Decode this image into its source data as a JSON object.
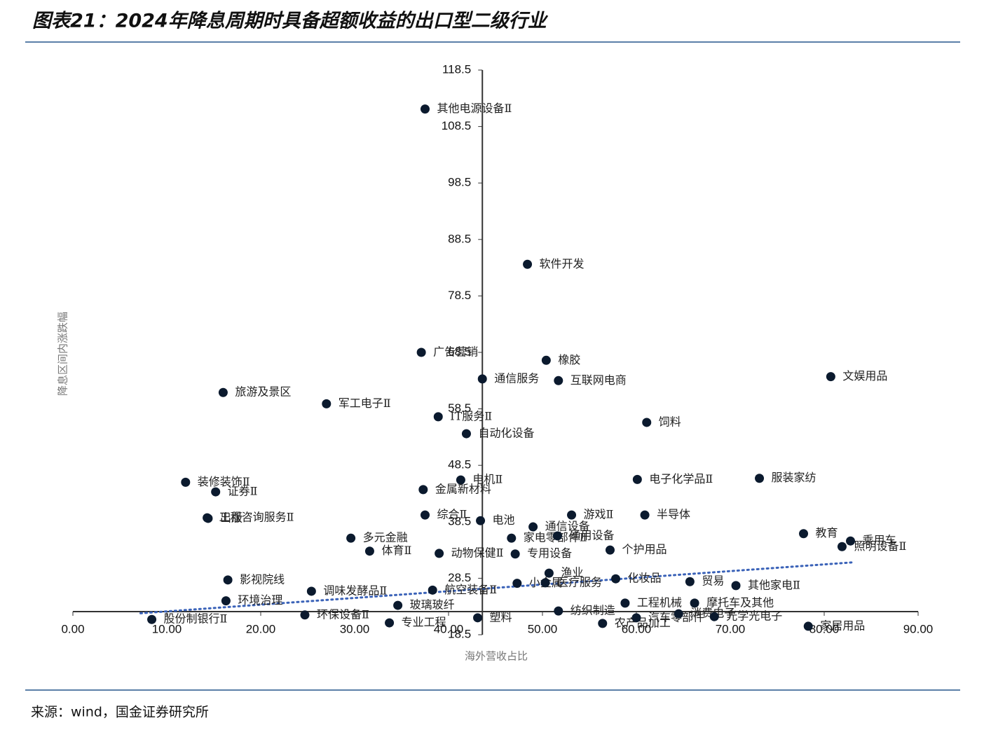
{
  "chart_data": {
    "type": "scatter",
    "title": "图表21：2024年降息周期时具备超额收益的出口型二级行业",
    "xlabel": "海外营收占比",
    "ylabel": "降息区间内涨跌幅",
    "source": "来源：wind，国金证券研究所",
    "xlim": [
      0,
      90
    ],
    "ylim": [
      18.5,
      118.5
    ],
    "xticks": [
      {
        "value": 0,
        "label": "0.00"
      },
      {
        "value": 10,
        "label": "10.00"
      },
      {
        "value": 20,
        "label": "20.00"
      },
      {
        "value": 30,
        "label": "30.00"
      },
      {
        "value": 40,
        "label": "40.00"
      },
      {
        "value": 50,
        "label": "50.00"
      },
      {
        "value": 60,
        "label": "60.00"
      },
      {
        "value": 70,
        "label": "70.00"
      },
      {
        "value": 80,
        "label": "80.00"
      },
      {
        "value": 90,
        "label": "90.00"
      }
    ],
    "yticks": [
      18.5,
      28.5,
      38.5,
      48.5,
      58.5,
      68.5,
      78.5,
      88.5,
      98.5,
      108.5,
      118.5
    ],
    "x_axis_crosses_at": 22.6,
    "y_axis_crosses_at": 43.6,
    "color": "#0b1a2e",
    "labels": [
      "其他电源设备Ⅱ",
      "软件开发",
      "广告营销",
      "橡胶",
      "文娱用品",
      "通信服务",
      "互联网电商",
      "旅游及景区",
      "军工电子Ⅱ",
      "IT服务Ⅱ",
      "饲料",
      "自动化设备",
      "电机Ⅱ",
      "装修装饰Ⅱ",
      "电子化学品Ⅱ",
      "服装家纺",
      "证券Ⅱ",
      "金属新材料",
      "游戏Ⅱ",
      "半导体",
      "工程咨询服务Ⅱ",
      "出版",
      "综合Ⅱ",
      "电池",
      "多元金融",
      "家电零部件Ⅱ",
      "教育",
      "乘用车",
      "照明设备Ⅱ",
      "个护用品",
      "体育Ⅱ",
      "专用设备",
      "动物保健Ⅱ",
      "影视院线",
      "调味发酵品Ⅱ",
      "航空装备Ⅱ",
      "环境治理",
      "玻璃玻纤",
      "股份制银行Ⅱ",
      "环保设备Ⅱ",
      "专业工程",
      "塑料",
      "渔业",
      "化妆品",
      "贸易",
      "其他家电Ⅱ",
      "摩托车及其他",
      "家居用品",
      "小金属",
      "通用设备",
      "医疗服务",
      "纺织制造",
      "农产品加工",
      "工程机械",
      "汽车零部件",
      "消费电子",
      "光学光电子",
      "通信设备"
    ],
    "x": [
      37.5,
      48.4,
      37.1,
      50.4,
      80.7,
      43.6,
      51.7,
      16.0,
      27.0,
      38.9,
      61.1,
      41.9,
      41.3,
      12.0,
      60.1,
      73.1,
      15.2,
      37.3,
      53.1,
      60.9,
      14.3,
      14.4,
      37.5,
      43.4,
      29.6,
      46.7,
      77.8,
      82.8,
      81.9,
      57.2,
      31.6,
      47.1,
      39.0,
      16.5,
      25.4,
      38.3,
      16.3,
      34.6,
      8.4,
      24.7,
      33.7,
      43.1,
      50.7,
      57.8,
      65.7,
      70.6,
      66.2,
      78.3,
      47.3,
      51.6,
      50.3,
      51.7,
      56.4,
      58.8,
      60.0,
      64.5,
      68.3,
      49.0
    ],
    "y": [
      111.6,
      84.1,
      68.5,
      67.1,
      64.2,
      63.8,
      63.5,
      61.4,
      59.4,
      57.1,
      56.1,
      54.1,
      45.9,
      45.5,
      46.0,
      46.2,
      43.8,
      44.2,
      39.7,
      39.7,
      39.2,
      39.1,
      39.7,
      38.7,
      35.6,
      35.6,
      36.4,
      35.1,
      34.1,
      33.5,
      33.3,
      32.8,
      32.9,
      28.2,
      26.2,
      26.4,
      24.5,
      23.7,
      21.2,
      22.0,
      20.6,
      21.5,
      29.4,
      28.4,
      27.9,
      27.2,
      24.1,
      20.0,
      27.6,
      36.0,
      27.7,
      22.7,
      20.5,
      24.1,
      21.5,
      22.2,
      21.7,
      37.6
    ],
    "trendline": {
      "x": [
        7.2,
        82.9
      ],
      "y": [
        22.3,
        31.3
      ],
      "color": "#3a62b8"
    }
  }
}
